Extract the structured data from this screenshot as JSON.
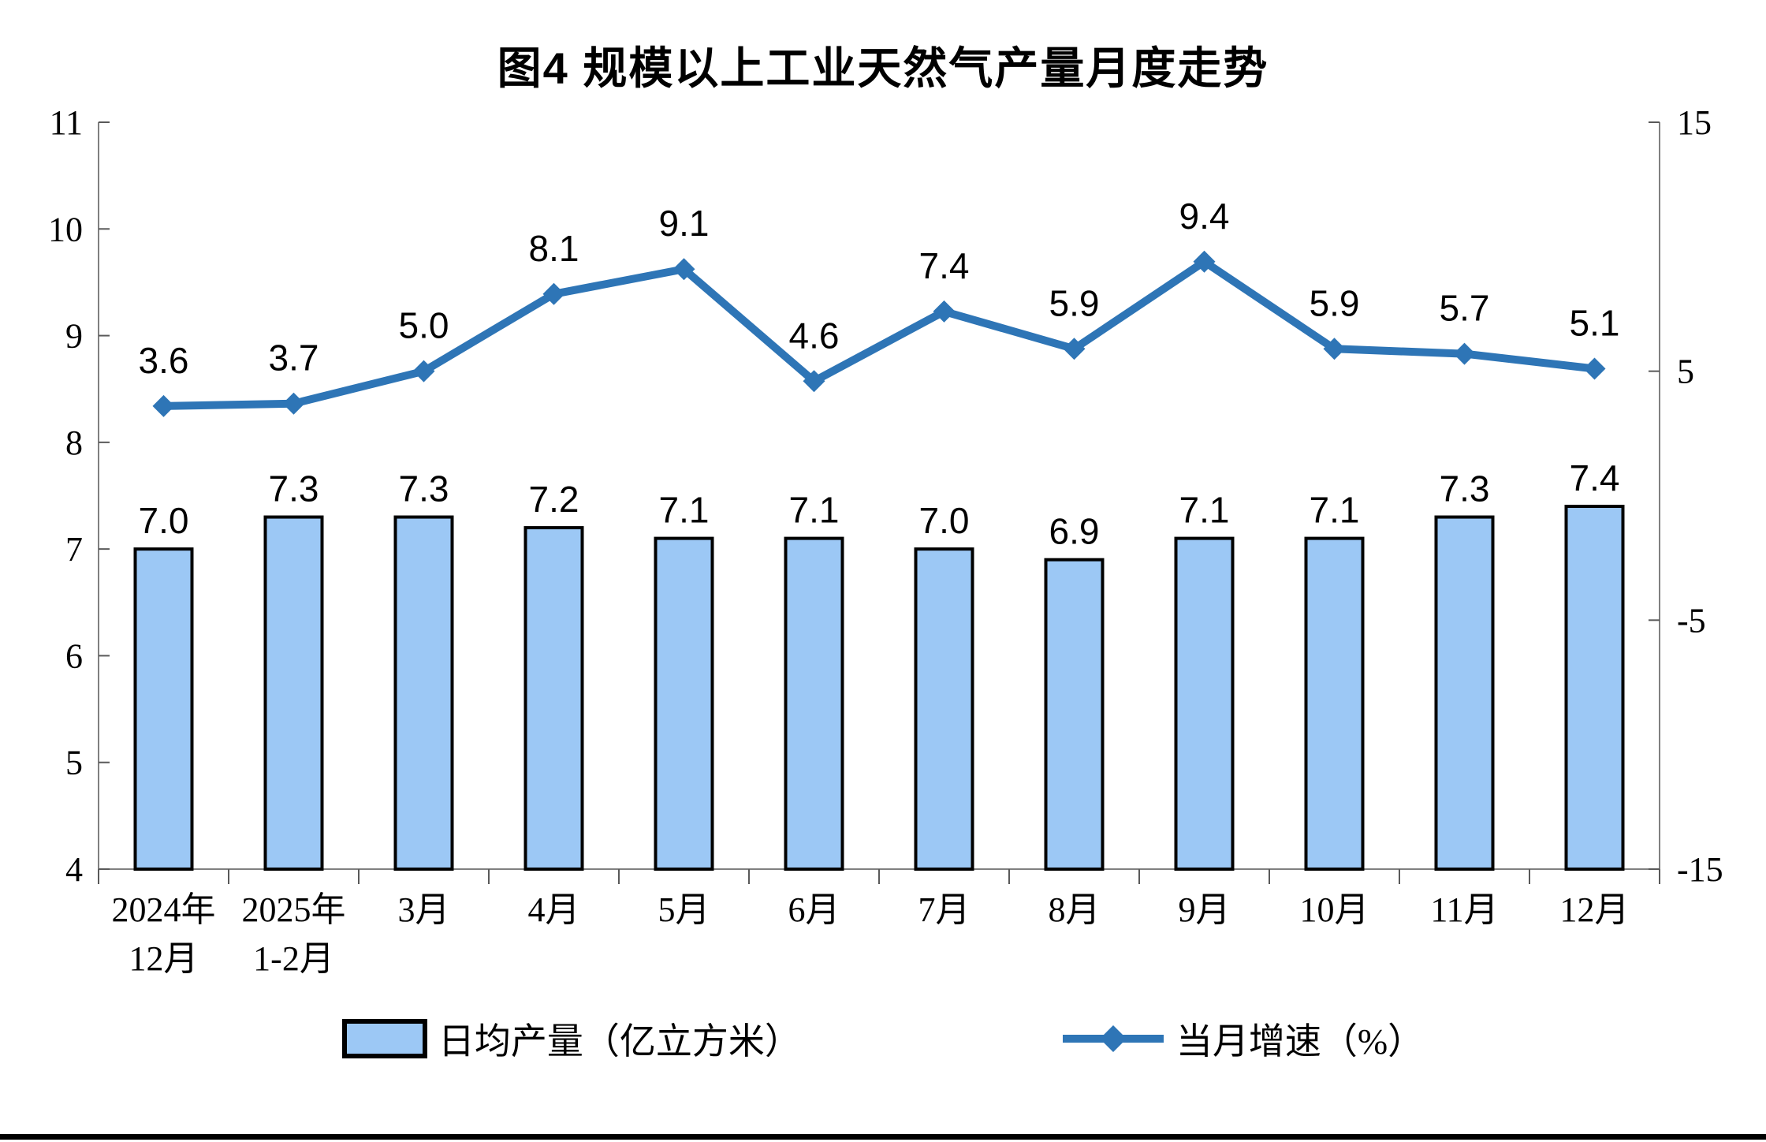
{
  "chart_data": {
    "type": "combo (bar + line)",
    "title": "图4 规模以上工业天然气产量月度走势",
    "categories": [
      "2024年\n12月",
      "2025年\n1-2月",
      "3月",
      "4月",
      "5月",
      "6月",
      "7月",
      "8月",
      "9月",
      "10月",
      "11月",
      "12月"
    ],
    "series": [
      {
        "name": "日均产量（亿立方米）",
        "type": "bar",
        "axis": "left",
        "values": [
          7.0,
          7.3,
          7.3,
          7.2,
          7.1,
          7.1,
          7.0,
          6.9,
          7.1,
          7.1,
          7.3,
          7.4
        ]
      },
      {
        "name": "当月增速（%）",
        "type": "line",
        "axis": "right",
        "values": [
          3.6,
          3.7,
          5.0,
          8.1,
          9.1,
          4.6,
          7.4,
          5.9,
          9.4,
          5.9,
          5.7,
          5.1
        ]
      }
    ],
    "left_axis": {
      "min": 4,
      "max": 11,
      "ticks": [
        11,
        10,
        9,
        8,
        7,
        6,
        5,
        4
      ]
    },
    "right_axis": {
      "min": -15,
      "max": 15,
      "ticks": [
        15,
        5,
        -5,
        -15
      ]
    },
    "grid": false,
    "legend_position": "bottom",
    "data_label_format": "one-decimal",
    "style": {
      "bar_fill": "#9CC8F5",
      "bar_stroke": "#000000",
      "line_color": "#2E75B6",
      "axis_line_color": "#808080",
      "text_color": "#000000",
      "background": "#FFFFFF"
    }
  }
}
